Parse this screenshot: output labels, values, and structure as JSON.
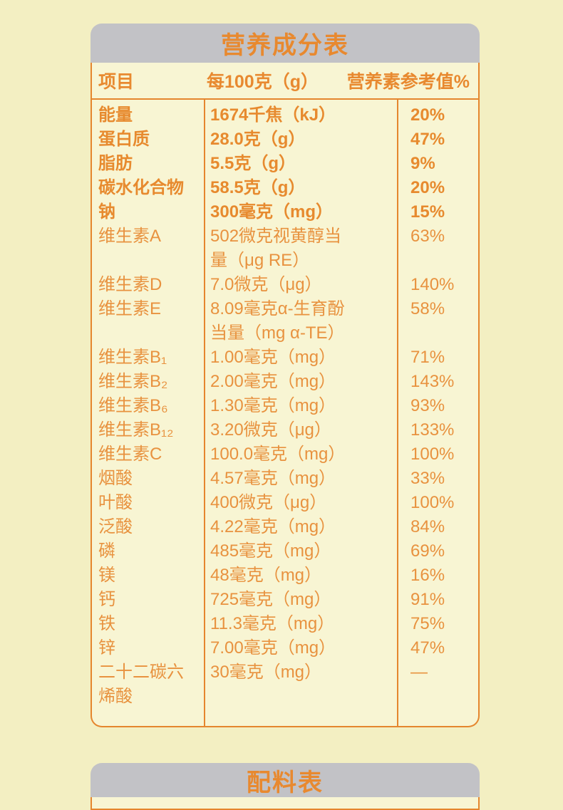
{
  "colors": {
    "page_background": "#f3efc2",
    "panel_background": "#f8f5d3",
    "accent_orange": "#e5862e",
    "text_orange": "#e8923f",
    "header_gray": "#c2c2c6"
  },
  "nutrition_table": {
    "title": "营养成分表",
    "columns": {
      "item": "项目",
      "per_100g": "每100克（g）",
      "nrv": "营养素参考值%"
    },
    "rows": [
      {
        "name": "能量",
        "value": "1674千焦（kJ）",
        "nrv": "20%",
        "bold": true
      },
      {
        "name": "蛋白质",
        "value": "28.0克（g）",
        "nrv": "47%",
        "bold": true
      },
      {
        "name": "脂肪",
        "value": "5.5克（g）",
        "nrv": "9%",
        "bold": true
      },
      {
        "name": "碳水化合物",
        "value": "58.5克（g）",
        "nrv": "20%",
        "bold": true
      },
      {
        "name": "钠",
        "value": "300毫克（mg）",
        "nrv": "15%",
        "bold": true
      },
      {
        "name": "维生素A",
        "value": "502微克视黄醇当\n量（μg RE）",
        "nrv": "63%",
        "bold": false
      },
      {
        "name": "维生素D",
        "value": "7.0微克（μg）",
        "nrv": "140%",
        "bold": false
      },
      {
        "name": "维生素E",
        "value": "8.09毫克α-生育酚\n当量（mg α-TE）",
        "nrv": "58%",
        "bold": false
      },
      {
        "name": "维生素B₁",
        "value": "1.00毫克（mg）",
        "nrv": "71%",
        "bold": false
      },
      {
        "name": "维生素B₂",
        "value": "2.00毫克（mg）",
        "nrv": "143%",
        "bold": false
      },
      {
        "name": "维生素B₆",
        "value": "1.30毫克（mg）",
        "nrv": "93%",
        "bold": false
      },
      {
        "name": "维生素B₁₂",
        "value": "3.20微克（μg）",
        "nrv": "133%",
        "bold": false
      },
      {
        "name": "维生素C",
        "value": "100.0毫克（mg）",
        "nrv": "100%",
        "bold": false
      },
      {
        "name": "烟酸",
        "value": "4.57毫克（mg）",
        "nrv": "33%",
        "bold": false
      },
      {
        "name": "叶酸",
        "value": "400微克（μg）",
        "nrv": "100%",
        "bold": false
      },
      {
        "name": "泛酸",
        "value": "4.22毫克（mg）",
        "nrv": "84%",
        "bold": false
      },
      {
        "name": "磷",
        "value": "485毫克（mg）",
        "nrv": "69%",
        "bold": false
      },
      {
        "name": "镁",
        "value": "48毫克（mg）",
        "nrv": "16%",
        "bold": false
      },
      {
        "name": "钙",
        "value": "725毫克（mg）",
        "nrv": "91%",
        "bold": false
      },
      {
        "name": "铁",
        "value": "11.3毫克（mg）",
        "nrv": "75%",
        "bold": false
      },
      {
        "name": "锌",
        "value": "7.00毫克（mg）",
        "nrv": "47%",
        "bold": false
      },
      {
        "name": "二十二碳六\n烯酸",
        "value": "30毫克（mg）",
        "nrv": "—",
        "bold": false
      }
    ]
  },
  "ingredients_section": {
    "title": "配料表"
  }
}
